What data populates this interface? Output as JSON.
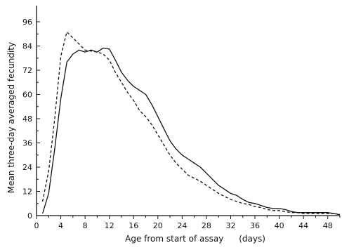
{
  "chart_data": {
    "type": "line",
    "title": "",
    "xlabel": "Age from start of assay",
    "xlabel_unit": "(days)",
    "ylabel": "Mean three-day averaged fecundity",
    "xlim": [
      0,
      50
    ],
    "ylim": [
      0,
      104
    ],
    "x_ticks": [
      0,
      4,
      8,
      12,
      16,
      20,
      24,
      28,
      32,
      36,
      40,
      44,
      48
    ],
    "y_ticks": [
      0,
      12,
      24,
      36,
      48,
      60,
      72,
      84,
      96
    ],
    "grid": false,
    "legend": "none",
    "series": [
      {
        "style": "solid",
        "color": "#111111",
        "points": [
          [
            1,
            1
          ],
          [
            2,
            11
          ],
          [
            3,
            33
          ],
          [
            4,
            58
          ],
          [
            5,
            76
          ],
          [
            6,
            80
          ],
          [
            7,
            82
          ],
          [
            8,
            81
          ],
          [
            9,
            82
          ],
          [
            10,
            81
          ],
          [
            11,
            83
          ],
          [
            12,
            82.5
          ],
          [
            13,
            77
          ],
          [
            14,
            71
          ],
          [
            15,
            67
          ],
          [
            16,
            64
          ],
          [
            17,
            62
          ],
          [
            18,
            60
          ],
          [
            19,
            55
          ],
          [
            20,
            49
          ],
          [
            21,
            43
          ],
          [
            22,
            37
          ],
          [
            23,
            33
          ],
          [
            24,
            30
          ],
          [
            25,
            28
          ],
          [
            26,
            26
          ],
          [
            27,
            24
          ],
          [
            28,
            21
          ],
          [
            29,
            18
          ],
          [
            30,
            15
          ],
          [
            31,
            13
          ],
          [
            32,
            11
          ],
          [
            33,
            10
          ],
          [
            34,
            8
          ],
          [
            35,
            6.5
          ],
          [
            36,
            6
          ],
          [
            37,
            5
          ],
          [
            38,
            4
          ],
          [
            39,
            3.5
          ],
          [
            40,
            3.5
          ],
          [
            41,
            3
          ],
          [
            42,
            2
          ],
          [
            43,
            1.5
          ],
          [
            44,
            1.5
          ],
          [
            45,
            1.5
          ],
          [
            46,
            1.5
          ],
          [
            47,
            1.5
          ],
          [
            48,
            1.5
          ],
          [
            49,
            1
          ],
          [
            50,
            0.5
          ]
        ]
      },
      {
        "style": "dashed",
        "color": "#111111",
        "points": [
          [
            1,
            7
          ],
          [
            2,
            22
          ],
          [
            3,
            48
          ],
          [
            4,
            79
          ],
          [
            5,
            91
          ],
          [
            6,
            88
          ],
          [
            7,
            85
          ],
          [
            8,
            82
          ],
          [
            9,
            81.5
          ],
          [
            10,
            81
          ],
          [
            11,
            80
          ],
          [
            12,
            77
          ],
          [
            13,
            71
          ],
          [
            14,
            66
          ],
          [
            15,
            61
          ],
          [
            16,
            57
          ],
          [
            17,
            52
          ],
          [
            18,
            49
          ],
          [
            19,
            45
          ],
          [
            20,
            40
          ],
          [
            21,
            35
          ],
          [
            22,
            30
          ],
          [
            23,
            26
          ],
          [
            24,
            23
          ],
          [
            25,
            20
          ],
          [
            26,
            18.5
          ],
          [
            27,
            17
          ],
          [
            28,
            15
          ],
          [
            29,
            13
          ],
          [
            30,
            11
          ],
          [
            31,
            9.5
          ],
          [
            32,
            8
          ],
          [
            33,
            7
          ],
          [
            34,
            6
          ],
          [
            35,
            5.5
          ],
          [
            36,
            4.5
          ],
          [
            37,
            4
          ],
          [
            38,
            3
          ],
          [
            39,
            2.5
          ],
          [
            40,
            2.5
          ],
          [
            41,
            2
          ],
          [
            42,
            1.5
          ],
          [
            43,
            1.5
          ],
          [
            44,
            1
          ],
          [
            45,
            1
          ],
          [
            46,
            1
          ],
          [
            47,
            1
          ],
          [
            48,
            1
          ],
          [
            49,
            1
          ],
          [
            50,
            0.5
          ]
        ]
      }
    ]
  }
}
